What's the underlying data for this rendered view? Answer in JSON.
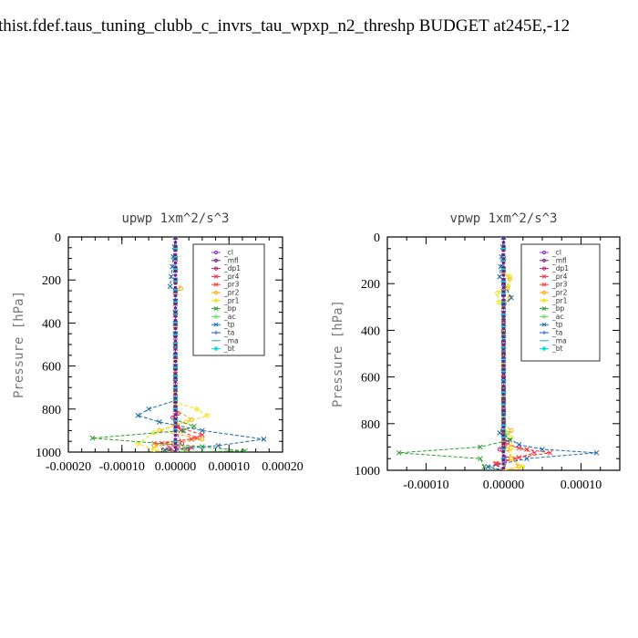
{
  "title": "thist.fdef.taus_tuning_clubb_c_invrs_tau_wpxp_n2_threshp  BUDGET at245E,-12",
  "chart_data": [
    {
      "type": "line",
      "title": "upwp   1xm^2/s^3",
      "ylabel": "Pressure [hPa]",
      "xlim": [
        -0.0002,
        0.0002
      ],
      "ylim": [
        1000,
        0
      ],
      "xticks": [
        -0.0002,
        -0.0001,
        0.0,
        0.0001,
        0.0002
      ],
      "xtick_labels": [
        "-0.00020",
        "-0.00010",
        "0.00000",
        "0.00010",
        "0.00020"
      ],
      "yticks": [
        0,
        200,
        400,
        600,
        800,
        1000
      ],
      "ytick_labels": [
        "0",
        "200",
        "400",
        "600",
        "800",
        "1000"
      ],
      "legend_position": "top-right",
      "series": [
        {
          "name": "_cl",
          "color": "#9b30d0",
          "values": [
            [
              0,
              0
            ],
            [
              0,
              300
            ],
            [
              0,
              600
            ],
            [
              0,
              800
            ],
            [
              0,
              950
            ],
            [
              0,
              1000
            ]
          ]
        },
        {
          "name": "_mfl",
          "color": "#7a1f8a",
          "values": [
            [
              0,
              0
            ],
            [
              0,
              300
            ],
            [
              0,
              600
            ],
            [
              0,
              800
            ],
            [
              0,
              950
            ],
            [
              0,
              1000
            ]
          ]
        },
        {
          "name": "_dp1",
          "color": "#c0206a",
          "values": [
            [
              0,
              0
            ],
            [
              0,
              800
            ],
            [
              5e-06,
              820
            ],
            [
              -5e-06,
              840
            ],
            [
              4e-06,
              880
            ],
            [
              0,
              900
            ],
            [
              1.2e-05,
              960
            ],
            [
              -1.2e-05,
              985
            ],
            [
              0,
              1000
            ]
          ]
        },
        {
          "name": "_pr4",
          "color": "#e8384f",
          "values": [
            [
              0,
              0
            ],
            [
              0,
              850
            ],
            [
              1e-05,
              900
            ],
            [
              4e-05,
              935
            ],
            [
              -2.5e-05,
              960
            ],
            [
              3e-05,
              980
            ],
            [
              -1e-05,
              995
            ],
            [
              0,
              1000
            ]
          ]
        },
        {
          "name": "_pr3",
          "color": "#ff3030",
          "values": [
            [
              0,
              0
            ],
            [
              0,
              880
            ],
            [
              5e-05,
              920
            ],
            [
              3e-05,
              940
            ],
            [
              -4e-05,
              960
            ],
            [
              2e-05,
              985
            ],
            [
              0,
              1000
            ]
          ]
        },
        {
          "name": "_pr2",
          "color": "#ffaa00",
          "values": [
            [
              0,
              0
            ],
            [
              0,
              200
            ],
            [
              1e-05,
              240
            ],
            [
              0,
              260
            ],
            [
              0,
              800
            ],
            [
              3e-05,
              850
            ],
            [
              -3e-05,
              900
            ],
            [
              5e-05,
              940
            ],
            [
              -4e-05,
              970
            ],
            [
              0,
              1000
            ]
          ]
        },
        {
          "name": "_pr1",
          "color": "#f0e000",
          "values": [
            [
              0,
              0
            ],
            [
              0,
              770
            ],
            [
              4e-05,
              800
            ],
            [
              6e-05,
              830
            ],
            [
              2e-05,
              860
            ],
            [
              -4e-05,
              910
            ],
            [
              -7e-05,
              960
            ],
            [
              -4e-05,
              990
            ],
            [
              0,
              1000
            ]
          ]
        },
        {
          "name": "_bp",
          "color": "#2ca02c",
          "values": [
            [
              0,
              0
            ],
            [
              0,
              850
            ],
            [
              3.5e-05,
              880
            ],
            [
              1.5e-05,
              900
            ],
            [
              -0.000155,
              935
            ],
            [
              5e-05,
              975
            ],
            [
              0.00013,
              995
            ],
            [
              0,
              1000
            ]
          ]
        },
        {
          "name": "_ac",
          "color": "#70e070",
          "values": [
            [
              0,
              0
            ],
            [
              0,
              950
            ],
            [
              2e-05,
              985
            ],
            [
              0,
              1000
            ]
          ]
        },
        {
          "name": "_tp",
          "color": "#1a6aa8",
          "values": [
            [
              0,
              0
            ],
            [
              -1e-05,
              230
            ],
            [
              0,
              250
            ],
            [
              0,
              760
            ],
            [
              -5e-05,
              800
            ],
            [
              -7e-05,
              830
            ],
            [
              -3e-05,
              860
            ],
            [
              5e-05,
              900
            ],
            [
              0.000165,
              940
            ],
            [
              8e-05,
              970
            ],
            [
              -2e-05,
              990
            ],
            [
              0,
              1000
            ]
          ]
        },
        {
          "name": "_ta",
          "color": "#2050d0",
          "values": [
            [
              0,
              0
            ],
            [
              0,
              1000
            ]
          ]
        },
        {
          "name": "_ma",
          "color": "#40b0b0",
          "values": [
            [
              0,
              0
            ],
            [
              0,
              1000
            ]
          ]
        },
        {
          "name": "_bt",
          "color": "#00e0e0",
          "values": [
            [
              0,
              0
            ],
            [
              0,
              1000
            ]
          ]
        }
      ]
    },
    {
      "type": "line",
      "title": "vpwp   1xm^2/s^3",
      "ylabel": "Pressure [hPa]",
      "xlim": [
        -0.00015,
        0.00015
      ],
      "ylim": [
        1000,
        0
      ],
      "xticks": [
        -0.0001,
        0.0,
        0.0001
      ],
      "xtick_labels": [
        "-0.00010",
        "0.00000",
        "0.00010"
      ],
      "yticks": [
        0,
        200,
        400,
        600,
        800,
        1000
      ],
      "ytick_labels": [
        "0",
        "200",
        "400",
        "600",
        "800",
        "1000"
      ],
      "legend_position": "top-right",
      "series": [
        {
          "name": "_cl",
          "color": "#9b30d0",
          "values": [
            [
              0,
              0
            ],
            [
              0,
              300
            ],
            [
              0,
              600
            ],
            [
              0,
              800
            ],
            [
              0,
              950
            ],
            [
              0,
              1000
            ]
          ]
        },
        {
          "name": "_mfl",
          "color": "#7a1f8a",
          "values": [
            [
              0,
              0
            ],
            [
              0,
              300
            ],
            [
              0,
              600
            ],
            [
              0,
              800
            ],
            [
              0,
              950
            ],
            [
              0,
              1000
            ]
          ]
        },
        {
          "name": "_dp1",
          "color": "#c0206a",
          "values": [
            [
              0,
              0
            ],
            [
              0,
              850
            ],
            [
              5e-06,
              880
            ],
            [
              -5e-06,
              910
            ],
            [
              5e-06,
              950
            ],
            [
              0,
              1000
            ]
          ]
        },
        {
          "name": "_pr4",
          "color": "#e8384f",
          "values": [
            [
              0,
              0
            ],
            [
              0,
              880
            ],
            [
              2e-05,
              905
            ],
            [
              4e-05,
              925
            ],
            [
              1.5e-05,
              950
            ],
            [
              -1e-05,
              975
            ],
            [
              0,
              1000
            ]
          ]
        },
        {
          "name": "_pr3",
          "color": "#ff3030",
          "values": [
            [
              0,
              0
            ],
            [
              0,
              890
            ],
            [
              3e-05,
              910
            ],
            [
              6e-05,
              925
            ],
            [
              2e-05,
              945
            ],
            [
              -1e-05,
              970
            ],
            [
              0,
              1000
            ]
          ]
        },
        {
          "name": "_pr2",
          "color": "#ffaa00",
          "values": [
            [
              0,
              0
            ],
            [
              0,
              150
            ],
            [
              8e-06,
              180
            ],
            [
              5e-06,
              220
            ],
            [
              8e-06,
              260
            ],
            [
              0,
              300
            ],
            [
              0,
              800
            ],
            [
              1e-05,
              830
            ],
            [
              0,
              870
            ],
            [
              1e-05,
              950
            ],
            [
              2e-05,
              985
            ],
            [
              0,
              1000
            ]
          ]
        },
        {
          "name": "_pr1",
          "color": "#f0e000",
          "values": [
            [
              0,
              0
            ],
            [
              0,
              140
            ],
            [
              8e-06,
              170
            ],
            [
              6e-06,
              210
            ],
            [
              -8e-06,
              240
            ],
            [
              -6e-06,
              280
            ],
            [
              0,
              300
            ],
            [
              0,
              820
            ],
            [
              1e-05,
              860
            ],
            [
              1e-05,
              950
            ],
            [
              2.5e-05,
              985
            ],
            [
              0,
              1000
            ]
          ]
        },
        {
          "name": "_bp",
          "color": "#2ca02c",
          "values": [
            [
              0,
              0
            ],
            [
              0,
              840
            ],
            [
              8e-06,
              870
            ],
            [
              -3e-05,
              900
            ],
            [
              -0.000135,
              925
            ],
            [
              -3e-05,
              950
            ],
            [
              -2.5e-05,
              985
            ],
            [
              0,
              1000
            ]
          ]
        },
        {
          "name": "_ac",
          "color": "#70e070",
          "values": [
            [
              0,
              0
            ],
            [
              0,
              820
            ],
            [
              5e-06,
              840
            ],
            [
              0,
              860
            ],
            [
              0,
              1000
            ]
          ]
        },
        {
          "name": "_tp",
          "color": "#1a6aa8",
          "values": [
            [
              0,
              0
            ],
            [
              -5e-06,
              170
            ],
            [
              0,
              200
            ],
            [
              1e-05,
              260
            ],
            [
              0,
              300
            ],
            [
              0,
              800
            ],
            [
              -5e-06,
              840
            ],
            [
              2e-05,
              890
            ],
            [
              5e-05,
              910
            ],
            [
              0.00012,
              925
            ],
            [
              3e-05,
              950
            ],
            [
              -2e-05,
              985
            ],
            [
              0,
              1000
            ]
          ]
        },
        {
          "name": "_ta",
          "color": "#2050d0",
          "values": [
            [
              0,
              0
            ],
            [
              0,
              1000
            ]
          ]
        },
        {
          "name": "_ma",
          "color": "#40b0b0",
          "values": [
            [
              0,
              0
            ],
            [
              0,
              1000
            ]
          ]
        },
        {
          "name": "_bt",
          "color": "#00e0e0",
          "values": [
            [
              0,
              0
            ],
            [
              0,
              1000
            ]
          ]
        }
      ]
    }
  ]
}
